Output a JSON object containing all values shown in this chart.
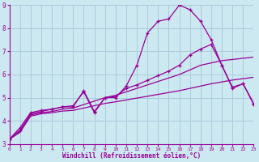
{
  "xlabel": "Windchill (Refroidissement éolien,°C)",
  "background_color": "#cce8f0",
  "grid_color": "#aaccdd",
  "line_color": "#990099",
  "xlim": [
    0,
    23
  ],
  "ylim": [
    3,
    9
  ],
  "xticks": [
    0,
    1,
    2,
    3,
    4,
    5,
    6,
    7,
    8,
    9,
    10,
    11,
    12,
    13,
    14,
    15,
    16,
    17,
    18,
    19,
    20,
    21,
    22,
    23
  ],
  "yticks": [
    3,
    4,
    5,
    6,
    7,
    8,
    9
  ],
  "curve1_x": [
    0,
    1,
    2,
    3,
    4,
    5,
    6,
    7,
    8,
    9,
    10,
    11,
    12,
    13,
    14,
    15,
    16,
    17,
    18,
    19,
    20,
    21,
    22,
    23
  ],
  "curve1_y": [
    3.2,
    3.6,
    4.3,
    4.4,
    4.5,
    4.6,
    4.6,
    5.3,
    4.4,
    5.0,
    5.0,
    5.5,
    6.4,
    7.8,
    8.3,
    8.4,
    9.0,
    8.8,
    8.3,
    7.5,
    6.4,
    5.4,
    5.6,
    4.7
  ],
  "curve2_x": [
    0,
    1,
    2,
    3,
    4,
    5,
    6,
    7,
    8,
    9,
    10,
    11,
    12,
    13,
    14,
    15,
    16,
    17,
    18,
    19,
    20,
    21,
    22,
    23
  ],
  "curve2_y": [
    3.2,
    3.7,
    4.35,
    4.45,
    4.5,
    4.6,
    4.65,
    5.25,
    4.35,
    5.0,
    5.05,
    5.4,
    5.55,
    5.75,
    5.95,
    6.15,
    6.4,
    6.85,
    7.1,
    7.3,
    6.4,
    5.45,
    5.6,
    4.75
  ],
  "curve3_x": [
    0,
    1,
    2,
    3,
    4,
    5,
    6,
    7,
    8,
    9,
    10,
    11,
    12,
    13,
    14,
    15,
    16,
    17,
    18,
    19,
    20,
    21,
    22,
    23
  ],
  "curve3_y": [
    3.2,
    3.55,
    4.25,
    4.35,
    4.4,
    4.5,
    4.55,
    4.7,
    4.85,
    5.0,
    5.1,
    5.25,
    5.4,
    5.55,
    5.7,
    5.85,
    6.0,
    6.2,
    6.4,
    6.5,
    6.6,
    6.65,
    6.7,
    6.75
  ],
  "curve4_x": [
    0,
    1,
    2,
    3,
    4,
    5,
    6,
    7,
    8,
    9,
    10,
    11,
    12,
    13,
    14,
    15,
    16,
    17,
    18,
    19,
    20,
    21,
    22,
    23
  ],
  "curve4_y": [
    3.2,
    3.5,
    4.2,
    4.3,
    4.35,
    4.42,
    4.45,
    4.55,
    4.65,
    4.75,
    4.82,
    4.9,
    4.98,
    5.06,
    5.14,
    5.22,
    5.3,
    5.4,
    5.5,
    5.6,
    5.68,
    5.76,
    5.82,
    5.88
  ]
}
